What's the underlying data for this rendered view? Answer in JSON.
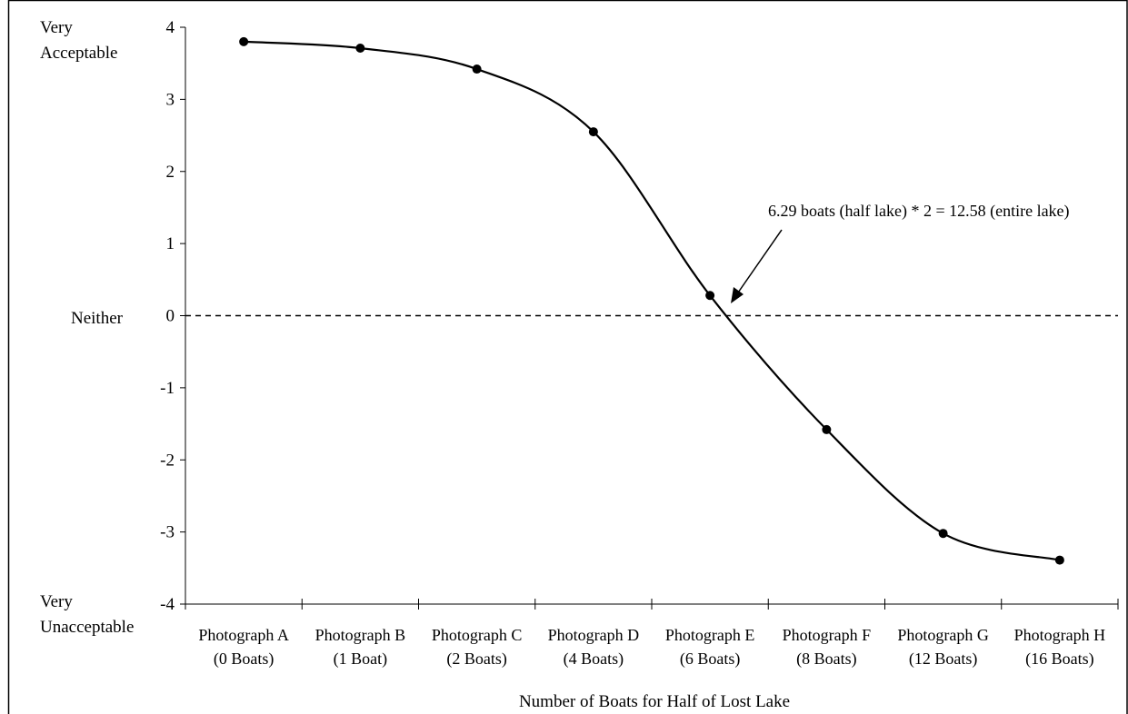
{
  "chart_data": {
    "type": "line",
    "title": "",
    "xlabel": "Number of Boats for Half of Lost Lake",
    "ylabel": "",
    "categories": [
      [
        "Photograph A",
        "(0 Boats)"
      ],
      [
        "Photograph B",
        "(1 Boat)"
      ],
      [
        "Photograph C",
        "(2 Boats)"
      ],
      [
        "Photograph D",
        "(4 Boats)"
      ],
      [
        "Photograph E",
        "(6 Boats)"
      ],
      [
        "Photograph F",
        "(8 Boats)"
      ],
      [
        "Photograph G",
        "(12 Boats)"
      ],
      [
        "Photograph H",
        "(16 Boats)"
      ]
    ],
    "series": [
      {
        "values": [
          3.8,
          3.71,
          3.42,
          2.55,
          0.28,
          -1.58,
          -3.02,
          -3.39
        ]
      }
    ],
    "ylim": [
      -4,
      4
    ],
    "yticks": [
      "4",
      "3",
      "2",
      "1",
      "0",
      "-1",
      "-2",
      "-3",
      "-4"
    ],
    "y_anchor_labels": {
      "top": [
        "Very",
        "Acceptable"
      ],
      "middle": "Neither",
      "bottom": [
        "Very",
        "Unacceptable"
      ]
    },
    "reference_line": {
      "y": 0,
      "style": "dashed"
    },
    "annotation": {
      "text": "6.29 boats (half lake) * 2 = 12.58 (entire lake)"
    },
    "grid": false,
    "legend": "none",
    "line_color": "#000000"
  }
}
